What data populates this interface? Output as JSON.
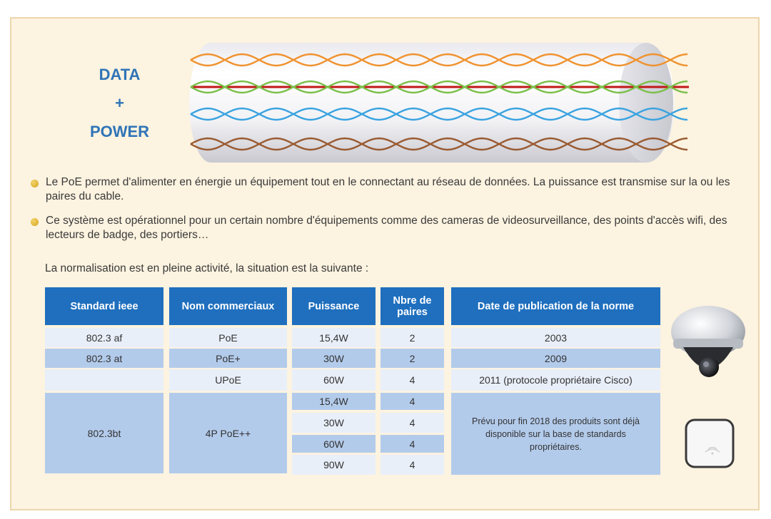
{
  "title": {
    "line1": "DATA",
    "line2": "+",
    "line3": "POWER"
  },
  "bullets": [
    "Le PoE permet d'alimenter en énergie un équipement tout en le connectant au réseau de données. La puissance est transmise sur la ou les paires du cable.",
    "Ce système est opérationnel pour un certain nombre d'équipements comme des cameras de videosurveillance, des points d'accès wifi, des lecteurs de badge, des portiers…"
  ],
  "intro": "La normalisation est en pleine activité, la situation est la suivante :",
  "table": {
    "headers": [
      "Standard ieee",
      "Nom commerciaux",
      "Puissance",
      "Nbre de paires",
      "Date de publication de la norme"
    ],
    "rows": [
      {
        "standard": "802.3 af",
        "nom": "PoE",
        "puissance": "15,4W",
        "paires": "2",
        "date": "2003"
      },
      {
        "standard": "802.3 at",
        "nom": "PoE+",
        "puissance": "30W",
        "paires": "2",
        "date": "2009"
      },
      {
        "standard": "",
        "nom": "UPoE",
        "puissance": "60W",
        "paires": "4",
        "date": "2011 (protocole propriétaire Cisco)"
      }
    ],
    "bt": {
      "standard": "802.3bt",
      "nom": "4P PoE++",
      "puissances": [
        "15,4W",
        "30W",
        "60W",
        "90W"
      ],
      "paires": [
        "4",
        "4",
        "4",
        "4"
      ],
      "note": "Prévu pour fin 2018 des produits sont déjà disponible sur la base de standards propriétaires."
    }
  },
  "colors": {
    "background": "#fcf3e0",
    "header": "#1f6fbe",
    "title": "#2f74b8",
    "wire_orange": "#f0922e",
    "wire_green": "#7cc04a",
    "wire_red": "#c01818",
    "wire_blue": "#3aa3e0",
    "wire_brown": "#9a5a30"
  },
  "icons": {
    "camera": "dome-camera-icon",
    "access_point": "wifi-access-point-icon",
    "bullet": "bullet-dot-icon"
  }
}
